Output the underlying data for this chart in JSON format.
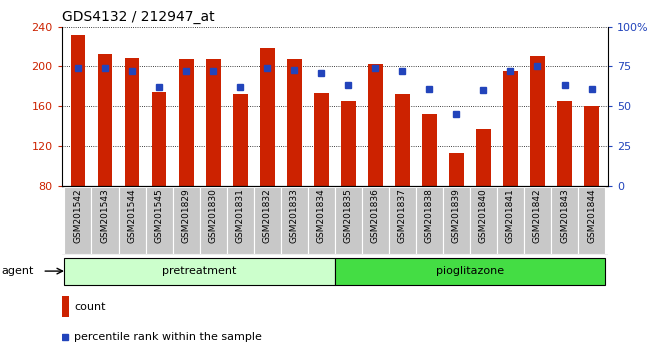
{
  "title": "GDS4132 / 212947_at",
  "samples": [
    "GSM201542",
    "GSM201543",
    "GSM201544",
    "GSM201545",
    "GSM201829",
    "GSM201830",
    "GSM201831",
    "GSM201832",
    "GSM201833",
    "GSM201834",
    "GSM201835",
    "GSM201836",
    "GSM201837",
    "GSM201838",
    "GSM201839",
    "GSM201840",
    "GSM201841",
    "GSM201842",
    "GSM201843",
    "GSM201844"
  ],
  "counts": [
    232,
    212,
    208,
    174,
    207,
    207,
    172,
    218,
    207,
    173,
    165,
    202,
    172,
    152,
    113,
    137,
    195,
    210,
    165,
    160
  ],
  "percentile_ranks": [
    74,
    74,
    72,
    62,
    72,
    72,
    62,
    74,
    73,
    71,
    63,
    74,
    72,
    61,
    45,
    60,
    72,
    75,
    63,
    61
  ],
  "bar_color": "#cc2200",
  "dot_color": "#2244bb",
  "ylim_left": [
    80,
    240
  ],
  "ylim_right": [
    0,
    100
  ],
  "yticks_left": [
    80,
    120,
    160,
    200,
    240
  ],
  "yticks_right": [
    0,
    25,
    50,
    75,
    100
  ],
  "ytick_labels_right": [
    "0",
    "25",
    "50",
    "75",
    "100%"
  ],
  "groups": [
    {
      "label": "pretreatment",
      "start": 0,
      "end": 10,
      "color": "#ccffcc"
    },
    {
      "label": "pioglitazone",
      "start": 10,
      "end": 20,
      "color": "#44dd44"
    }
  ],
  "agent_label": "agent",
  "legend_count_label": "count",
  "legend_percentile_label": "percentile rank within the sample",
  "bar_color_legend": "#cc2200",
  "dot_color_legend": "#2244bb",
  "bar_width": 0.55,
  "title_fontsize": 10,
  "tick_fontsize": 6.5,
  "group_fontsize": 8,
  "legend_fontsize": 8
}
